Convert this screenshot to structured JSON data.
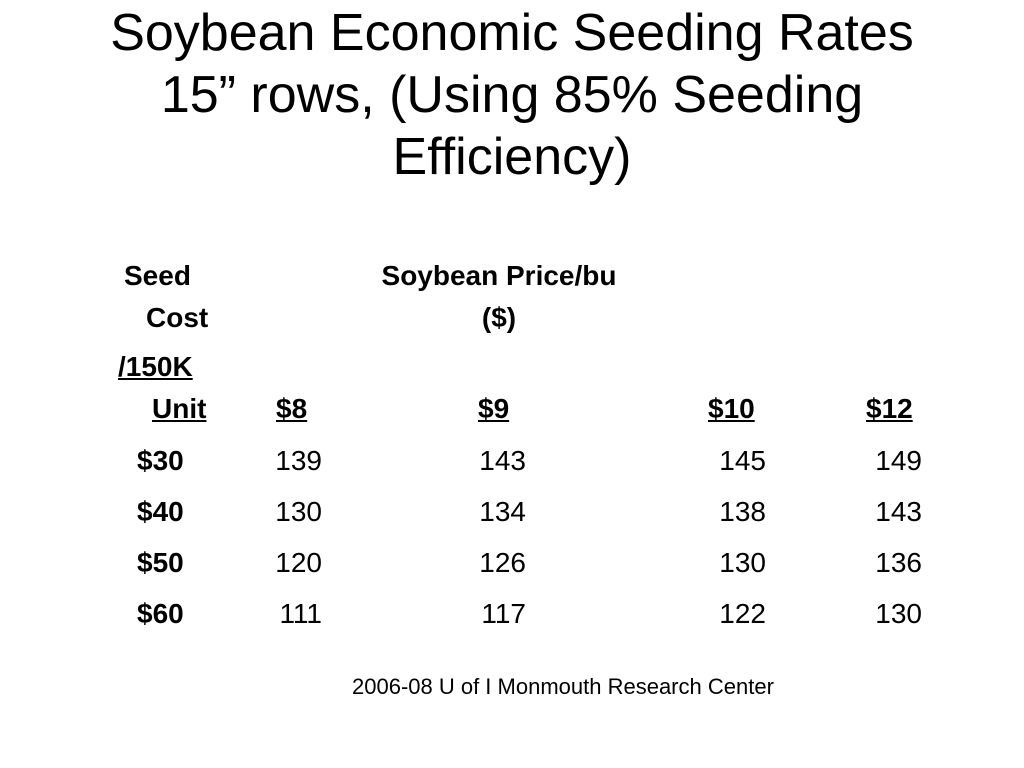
{
  "title": {
    "line1": "Soybean Economic Seeding Rates",
    "line2": "15” rows, (Using 85% Seeding",
    "line3": "Efficiency)"
  },
  "table": {
    "row_header": {
      "line1": "Seed",
      "line2": "Cost",
      "line3": "/150K",
      "line4": "Unit"
    },
    "price_header": {
      "line1": "Soybean Price/bu",
      "line2": "($)"
    },
    "columns": [
      "$8",
      "$9",
      "$10",
      "$12"
    ],
    "rows": [
      {
        "cost": "$30",
        "values": [
          "139",
          "143",
          "145",
          "149"
        ]
      },
      {
        "cost": "$40",
        "values": [
          "130",
          "134",
          "138",
          "143"
        ]
      },
      {
        "cost": "$50",
        "values": [
          "120",
          "126",
          "130",
          "136"
        ]
      },
      {
        "cost": "$60",
        "values": [
          "111",
          "117",
          "122",
          "130"
        ]
      }
    ]
  },
  "footer": {
    "source": "2006-08 U of I Monmouth Research Center"
  }
}
